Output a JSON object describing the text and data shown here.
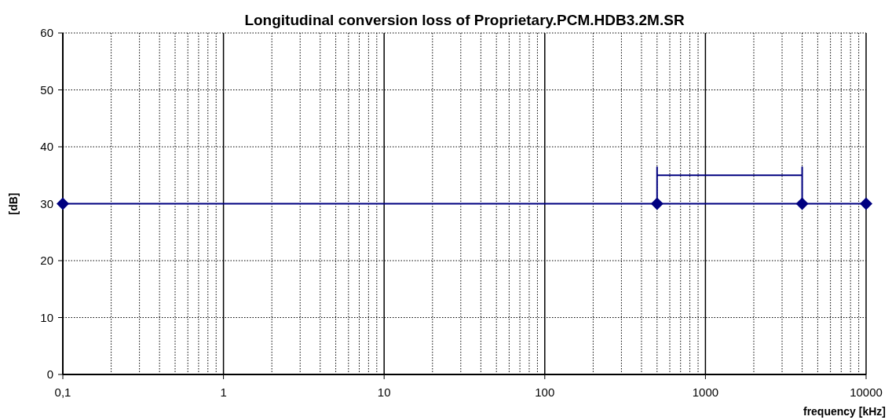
{
  "chart_data": {
    "type": "line",
    "title": "Longitudinal conversion loss of Proprietary.PCM.HDB3.2M.SR",
    "xlabel": "frequency [kHz]",
    "ylabel": "[dB]",
    "log": "x",
    "grid": true,
    "xlim": [
      0.1,
      10000
    ],
    "xticks": [
      {
        "value": 0.1,
        "label": "0,1"
      },
      1,
      10,
      100,
      1000,
      10000
    ],
    "ylim": [
      0,
      60
    ],
    "yticks": [
      0,
      10,
      20,
      30,
      40,
      50,
      60
    ],
    "series": [
      {
        "color": "#000080",
        "x": [
          0.1,
          500,
          4000,
          10000
        ],
        "values": [
          30,
          30,
          30,
          30
        ],
        "marker": "diamond",
        "line_style": "solid"
      },
      {
        "color": "#000080",
        "x": [
          500,
          500,
          500,
          4000,
          4000,
          4000
        ],
        "values": [
          30,
          36.4,
          35,
          35,
          36.4,
          30
        ],
        "marker": "none",
        "line_style": "solid"
      }
    ]
  }
}
